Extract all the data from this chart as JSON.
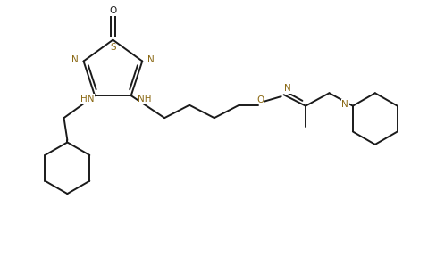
{
  "bg_color": "#ffffff",
  "line_color": "#1a1a1a",
  "heteroatom_color": "#8B6914",
  "fig_width": 4.88,
  "fig_height": 2.88,
  "dpi": 100,
  "xlim": [
    0,
    10
  ],
  "ylim": [
    0,
    6
  ],
  "lw": 1.4,
  "fontsize": 7.5
}
